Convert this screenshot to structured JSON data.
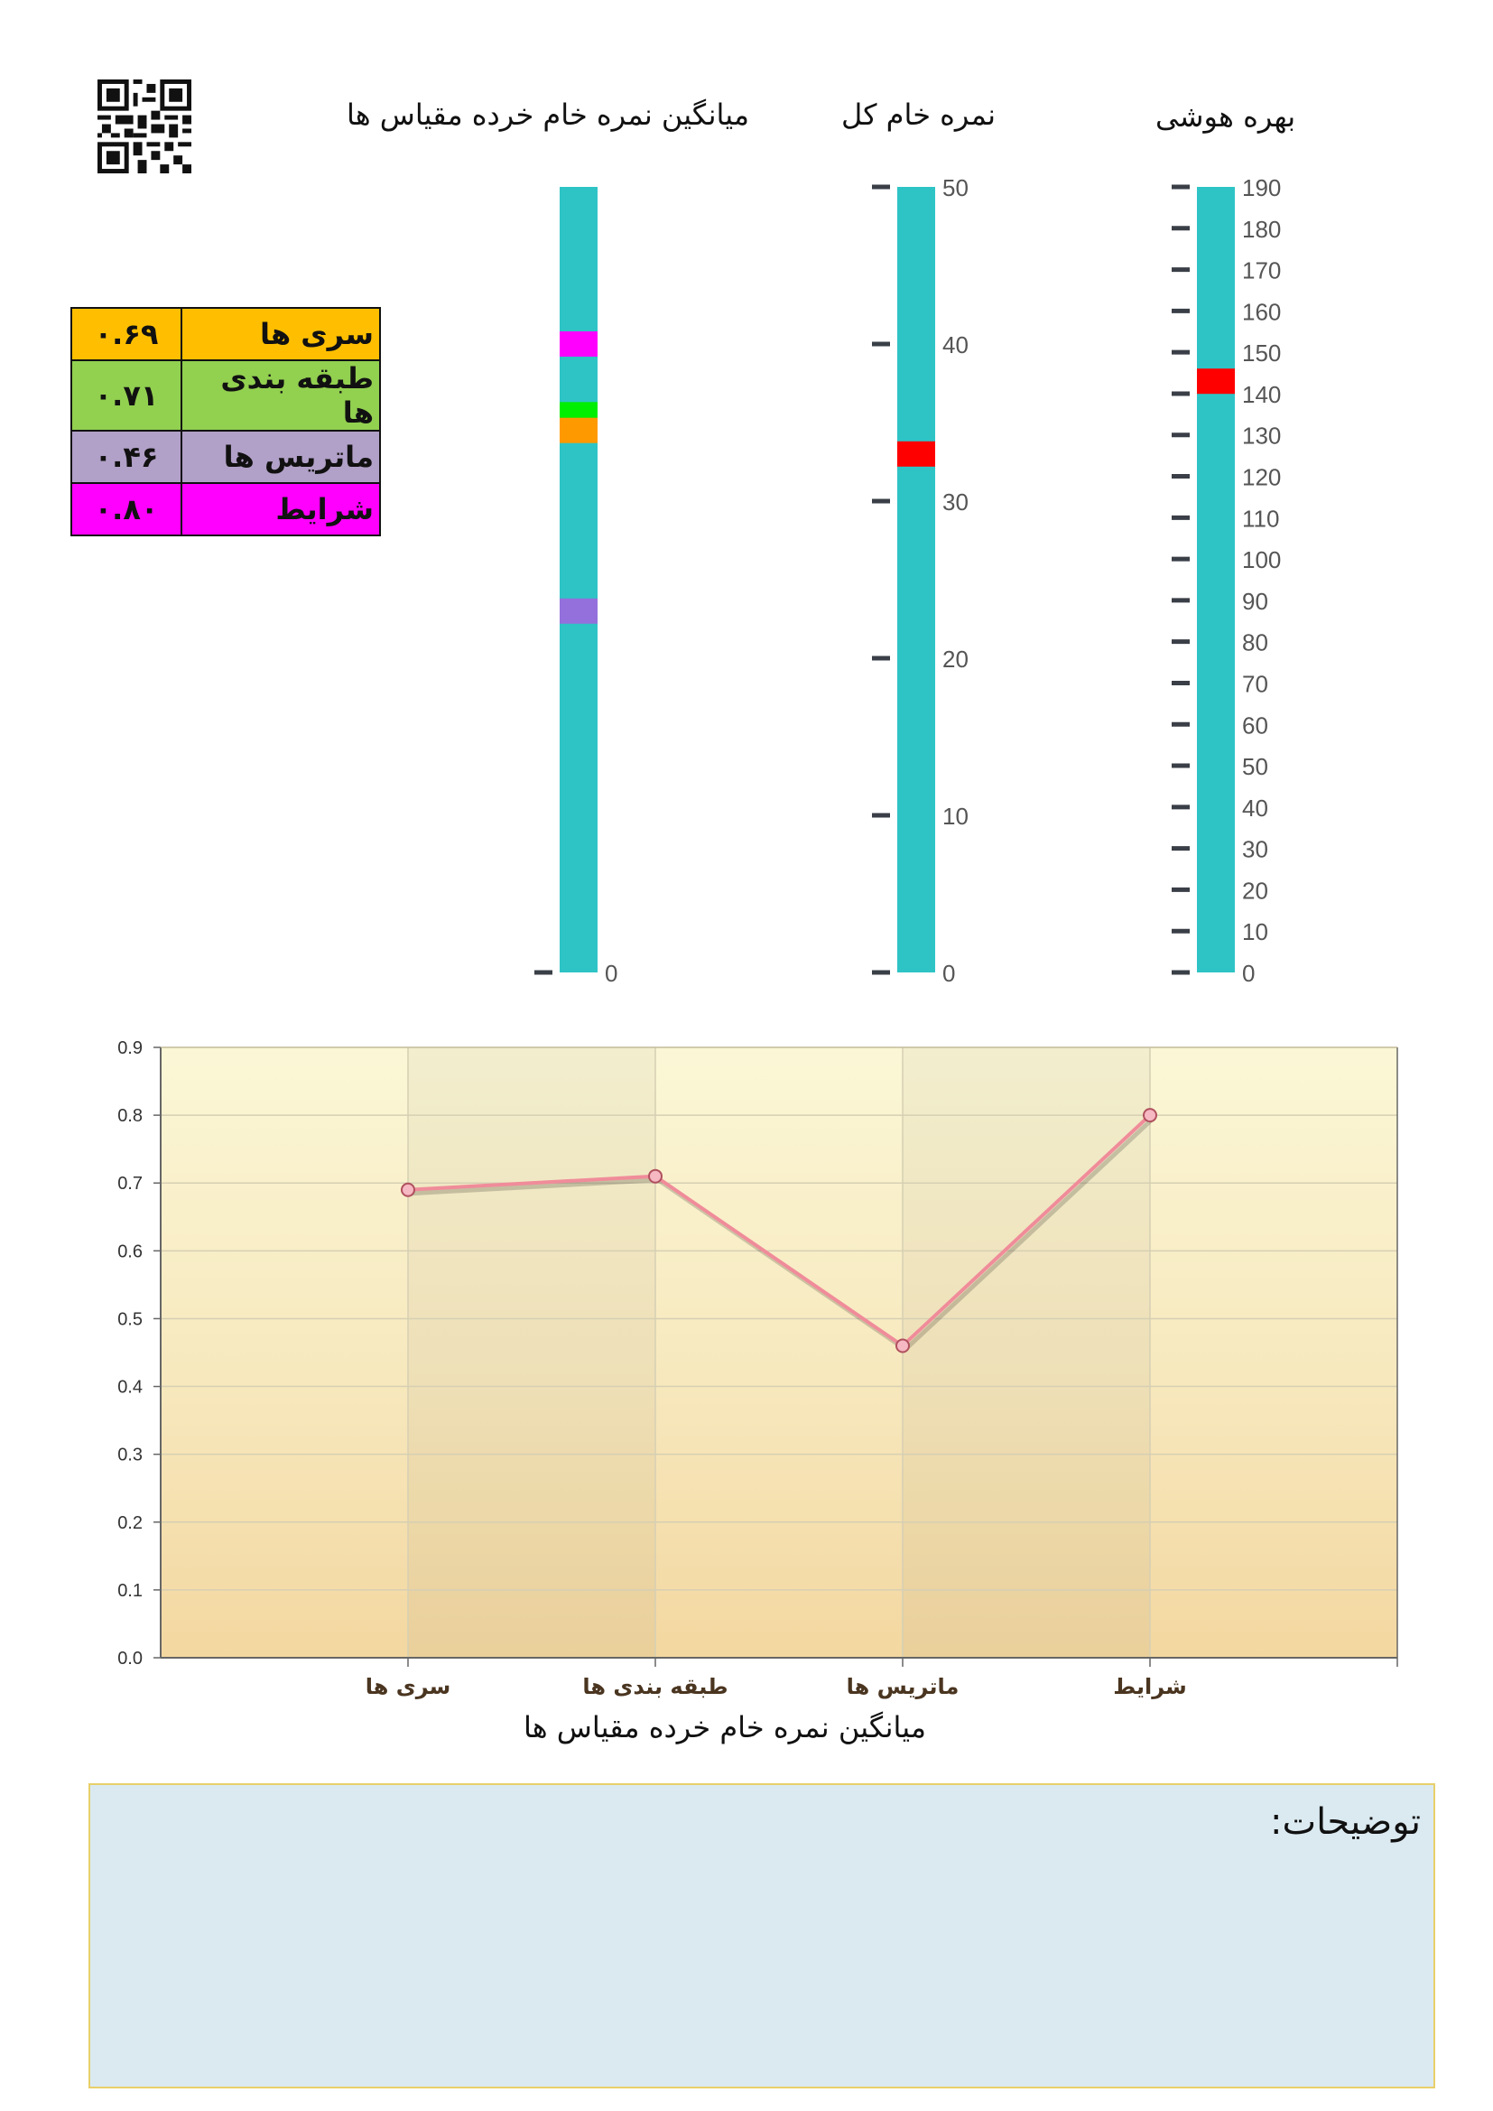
{
  "gauges": {
    "titles": {
      "iq": "بهره هوشی",
      "total": "نمره خام کل",
      "subtests": "میانگین نمره خام خرده مقیاس ها"
    },
    "iq": {
      "min": 0,
      "max": 190,
      "step": 10,
      "value": 143,
      "marker_color": "#ff0000"
    },
    "total": {
      "min": 0,
      "max": 50,
      "step": 10,
      "value": 33,
      "marker_color": "#ff0000"
    },
    "subtests": {
      "min": 0,
      "max": 1,
      "tick_labels": [
        "0"
      ],
      "markers": [
        {
          "name": "شرایط",
          "value": 0.8,
          "color": "#ff00ff"
        },
        {
          "name": "طبقه بندی ها",
          "value": 0.71,
          "color": "#00ee00"
        },
        {
          "name": "سری ها",
          "value": 0.69,
          "color": "#ff9900"
        },
        {
          "name": "ماتریس ها",
          "value": 0.46,
          "color": "#9370db"
        }
      ]
    },
    "bar_color": "#2ec4c6"
  },
  "legend": [
    {
      "label": "سری ها",
      "value": "۰.۶۹",
      "color": "#ffbf00"
    },
    {
      "label": "طبقه بندی ها",
      "value": "۰.۷۱",
      "color": "#92d050"
    },
    {
      "label": "ماتریس ها",
      "value": "۰.۴۶",
      "color": "#b1a0c7"
    },
    {
      "label": "شرایط",
      "value": "۰.۸۰",
      "color": "#ff00ff"
    }
  ],
  "chart_data": {
    "type": "line",
    "categories": [
      "سری ها",
      "طبقه بندی ها",
      "ماتریس ها",
      "شرایط"
    ],
    "values": [
      0.69,
      0.71,
      0.46,
      0.8
    ],
    "xlabel": "میانگین نمره خام خرده مقیاس ها",
    "ylabel": "",
    "ylim": [
      0,
      0.9
    ],
    "yticks": [
      "0.0",
      "0.1",
      "0.2",
      "0.3",
      "0.4",
      "0.5",
      "0.6",
      "0.7",
      "0.8",
      "0.9"
    ],
    "grid": true,
    "line_color": "#f08c9a"
  },
  "notes": {
    "title": "توضیحات:"
  }
}
